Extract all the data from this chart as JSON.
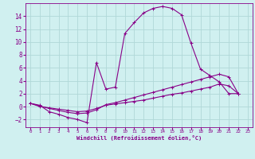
{
  "bg_color": "#d0f0f0",
  "grid_color": "#b0d8d8",
  "line_color": "#880088",
  "xlabel": "Windchill (Refroidissement éolien,°C)",
  "xlim": [
    -0.5,
    23.5
  ],
  "ylim": [
    -3.2,
    16.0
  ],
  "xticks": [
    0,
    1,
    2,
    3,
    4,
    5,
    6,
    7,
    8,
    9,
    10,
    11,
    12,
    13,
    14,
    15,
    16,
    17,
    18,
    19,
    20,
    21,
    22,
    23
  ],
  "yticks": [
    -2,
    0,
    2,
    4,
    6,
    8,
    10,
    12,
    14
  ],
  "curve1_x": [
    0,
    1,
    2,
    3,
    4,
    5,
    6,
    7,
    8,
    9,
    10,
    11,
    12,
    13,
    14,
    15,
    16,
    17,
    18,
    19,
    20,
    21,
    22
  ],
  "curve1_y": [
    0.5,
    0.2,
    -0.8,
    -1.2,
    -1.7,
    -2.0,
    -2.5,
    6.8,
    2.7,
    3.0,
    11.3,
    13.0,
    14.5,
    15.2,
    15.5,
    15.2,
    14.2,
    9.8,
    5.8,
    4.8,
    3.8,
    2.0,
    2.0
  ],
  "curve2_x": [
    0,
    1,
    2,
    3,
    4,
    5,
    6,
    7,
    8,
    9,
    10,
    11,
    12,
    13,
    14,
    15,
    16,
    17,
    18,
    19,
    20,
    21,
    22
  ],
  "curve2_y": [
    0.5,
    0.1,
    -0.3,
    -0.6,
    -0.9,
    -1.1,
    -1.0,
    -0.5,
    0.3,
    0.6,
    1.0,
    1.4,
    1.8,
    2.2,
    2.6,
    3.0,
    3.4,
    3.8,
    4.2,
    4.6,
    5.0,
    4.6,
    2.0
  ],
  "curve3_x": [
    0,
    1,
    2,
    3,
    4,
    5,
    6,
    7,
    8,
    9,
    10,
    11,
    12,
    13,
    14,
    15,
    16,
    17,
    18,
    19,
    20,
    21,
    22
  ],
  "curve3_y": [
    0.5,
    0.0,
    -0.2,
    -0.4,
    -0.6,
    -0.8,
    -0.7,
    -0.3,
    0.2,
    0.4,
    0.6,
    0.8,
    1.0,
    1.3,
    1.6,
    1.9,
    2.1,
    2.4,
    2.7,
    3.0,
    3.5,
    3.2,
    2.0
  ]
}
